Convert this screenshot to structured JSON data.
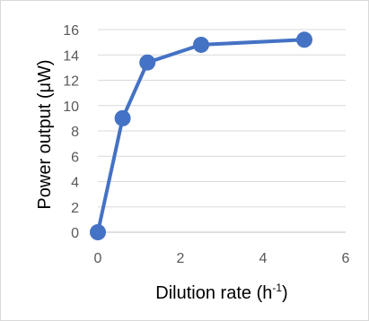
{
  "chart_data": {
    "type": "line",
    "title": "",
    "xlabel": "Dilution rate (h",
    "xlabel_sup": "-1",
    "xlabel_end": ")",
    "ylabel": "Power output (μW)",
    "xlim": [
      0,
      6
    ],
    "ylim": [
      0,
      16
    ],
    "xticks": [
      "0",
      "2",
      "4",
      "6"
    ],
    "yticks": [
      "0",
      "2",
      "4",
      "6",
      "8",
      "10",
      "12",
      "14",
      "16"
    ],
    "grid": "horizontal",
    "legend": "none",
    "series": [
      {
        "color": "#4472c4",
        "x": [
          0,
          0.6,
          1.2,
          2.5,
          5
        ],
        "y": [
          0,
          9,
          13.4,
          14.8,
          15.2
        ]
      }
    ]
  }
}
